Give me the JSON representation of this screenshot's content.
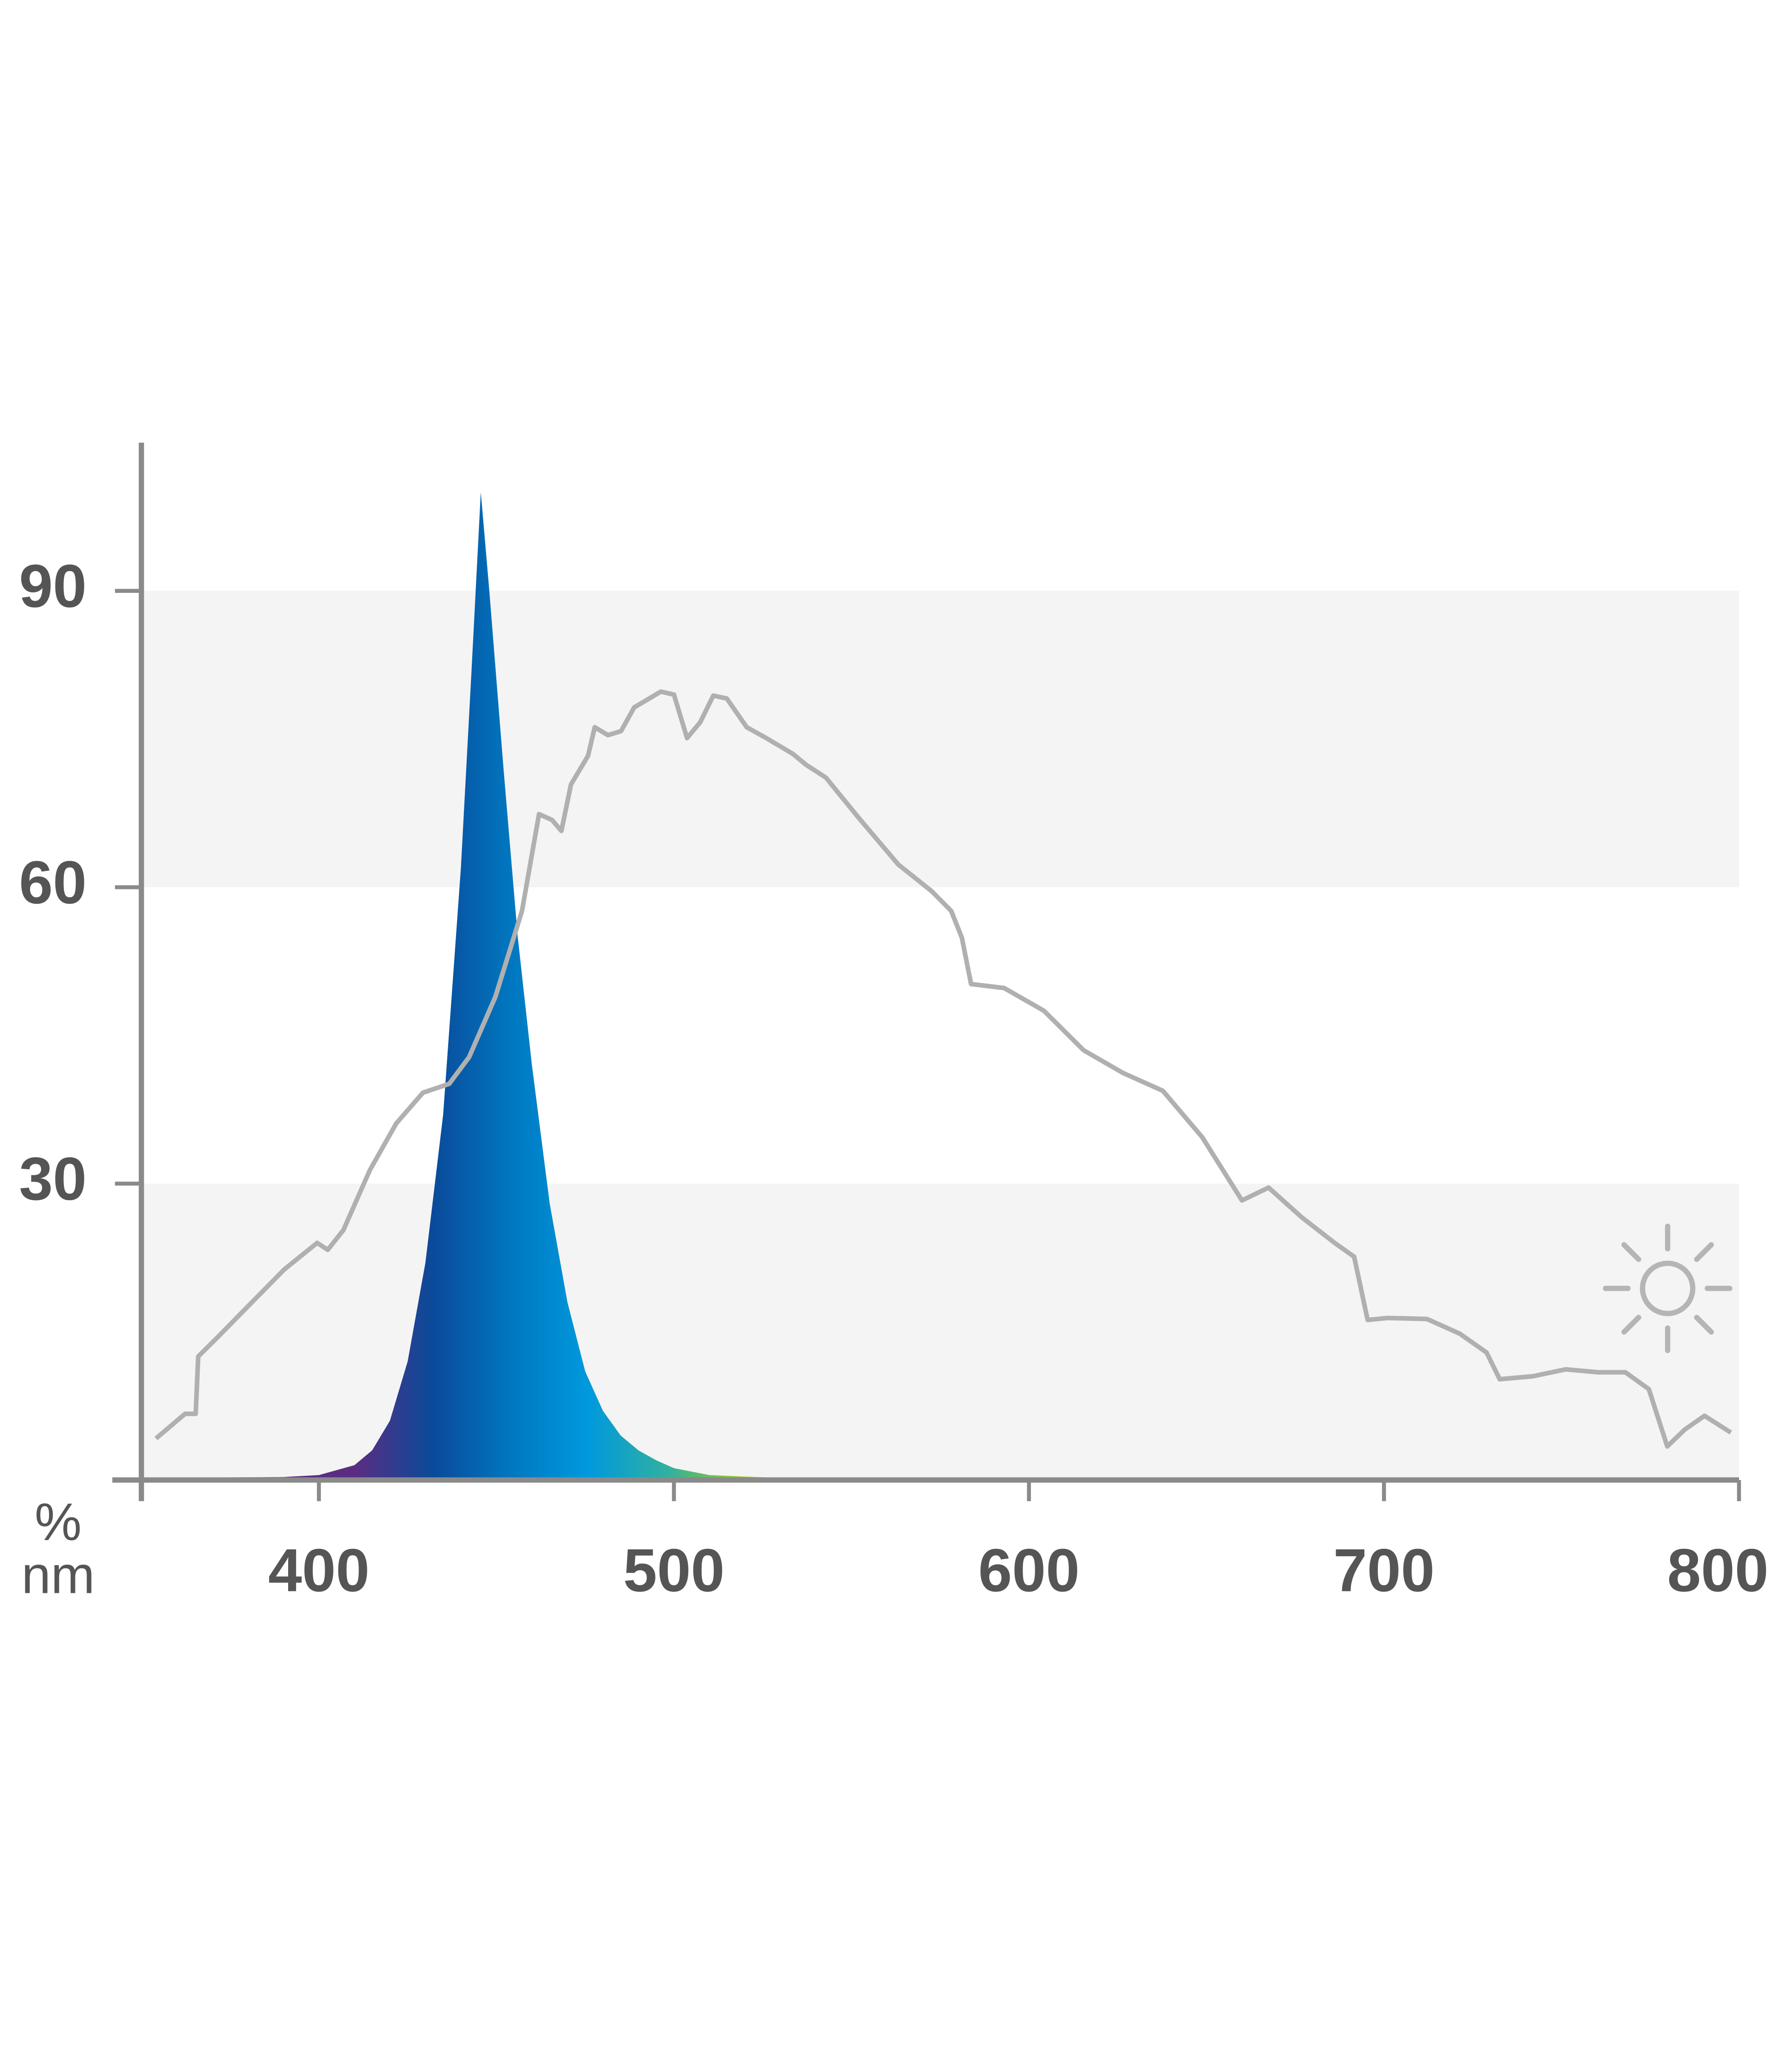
{
  "chart_data": {
    "type": "spectrum",
    "y_label": "%",
    "x_label": "nm",
    "xlim": [
      350,
      800
    ],
    "ylim": [
      0,
      105
    ],
    "xticks": [
      400,
      500,
      600,
      700,
      800
    ],
    "yticks": [
      30,
      60,
      90
    ],
    "grid": "bands",
    "series": [
      {
        "type": "area",
        "gradient": [
          "#5a2d82",
          "#0a4a9a",
          "#0077c0",
          "#0099dd",
          "#30b0a0",
          "#a0c820"
        ],
        "x": [
          350,
          390,
          400,
          410,
          415,
          420,
          425,
          430,
          435,
          440,
          443,
          445.6,
          448,
          452,
          456,
          460,
          465,
          470,
          475,
          480,
          485,
          490,
          495,
          500,
          510,
          530,
          560,
          800
        ],
        "values": [
          0.2,
          0.3,
          0.5,
          1.5,
          3,
          6,
          12,
          22,
          37,
          62,
          82,
          100,
          90,
          72,
          55,
          42,
          28,
          18,
          11,
          7,
          4.5,
          3,
          2,
          1.2,
          0.5,
          0.2,
          0.1,
          0
        ]
      },
      {
        "type": "line",
        "color": "#b0b0b0",
        "x": [
          354.1,
          362.3,
          365.3,
          366.0,
          371.6,
          380.9,
          390.2,
          399.5,
          402.5,
          406.9,
          414.4,
          421.8,
          429.3,
          436.7,
          442.3,
          449.7,
          457.2,
          462.0,
          465.7,
          468.3,
          471.0,
          475.8,
          477.7,
          481.4,
          485.1,
          488.8,
          496.3,
          500.0,
          503.7,
          507.4,
          511.1,
          514.9,
          520.5,
          526.0,
          533.5,
          537.2,
          542.8,
          552.1,
          563.2,
          572.6,
          578.1,
          581.1,
          583.7,
          593.0,
          604.2,
          615.4,
          626.5,
          637.7,
          648.8,
          660.0,
          667.5,
          676.8,
          686.1,
          691.6,
          695.4,
          701.0,
          712.1,
          721.4,
          728.9,
          732.6,
          741.9,
          751.2,
          760.5,
          768.0,
          774.6,
          779.8,
          784.7,
          790.3,
          797.7
        ],
        "values": [
          4.2,
          6.7,
          6.7,
          12.5,
          14.5,
          17.9,
          21.3,
          24.0,
          23.3,
          25.3,
          31.4,
          36.1,
          39.2,
          40.1,
          42.8,
          48.9,
          57.6,
          67.4,
          66.8,
          65.7,
          70.4,
          73.3,
          76.2,
          75.4,
          75.8,
          78.2,
          79.8,
          79.5,
          75.1,
          76.7,
          79.4,
          79.1,
          76.2,
          75.1,
          73.5,
          72.4,
          71.1,
          67.0,
          62.3,
          59.6,
          57.6,
          54.9,
          50.2,
          49.8,
          47.5,
          43.5,
          41.2,
          39.4,
          34.7,
          28.3,
          29.6,
          26.6,
          24.0,
          22.6,
          16.2,
          16.4,
          16.3,
          14.8,
          12.9,
          10.2,
          10.5,
          11.2,
          10.9,
          10.9,
          9.2,
          3.4,
          5.1,
          6.5,
          4.8
        ]
      }
    ]
  }
}
